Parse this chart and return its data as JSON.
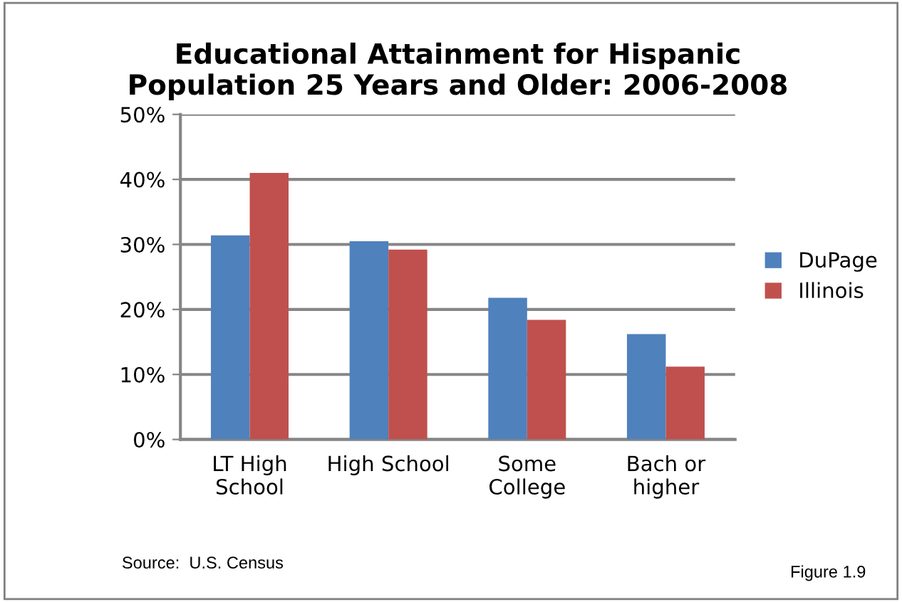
{
  "chart_data": {
    "type": "bar",
    "title": "Educational Attainment for Hispanic\nPopulation 25 Years and Older: 2006-2008",
    "categories": [
      "LT High\nSchool",
      "High School",
      "Some\nCollege",
      "Bach or\nhigher"
    ],
    "series": [
      {
        "name": "DuPage",
        "color": "#4f81bd",
        "values": [
          31.4,
          30.5,
          21.8,
          16.2
        ]
      },
      {
        "name": "Illinois",
        "color": "#c0504d",
        "values": [
          41.0,
          29.2,
          18.4,
          11.2
        ]
      }
    ],
    "ylim": [
      0,
      50
    ],
    "yticks": [
      {
        "value": 0,
        "label": "0%"
      },
      {
        "value": 10,
        "label": "10%"
      },
      {
        "value": 20,
        "label": "20%"
      },
      {
        "value": 30,
        "label": "30%"
      },
      {
        "value": 40,
        "label": "40%"
      },
      {
        "value": 50,
        "label": "50%"
      }
    ],
    "grid": "y",
    "legend": "right",
    "annotations": [
      "Source:  U.S. Census",
      "Figure 1.9"
    ]
  }
}
